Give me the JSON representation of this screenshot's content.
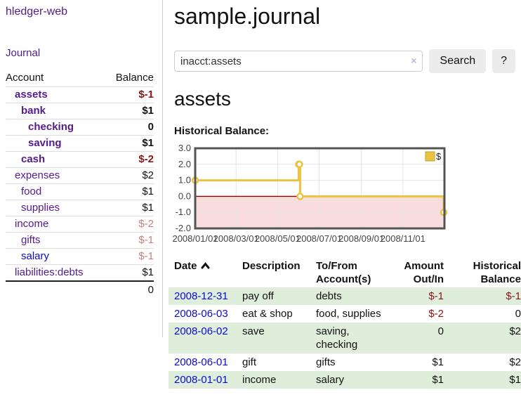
{
  "app": {
    "title": "hledger-web"
  },
  "nav": {
    "journal": "Journal"
  },
  "accounts_panel": {
    "headers": {
      "account": "Account",
      "balance": "Balance"
    },
    "rows": [
      {
        "name": "assets",
        "balance": "$-1"
      },
      {
        "name": "bank",
        "balance": "$1"
      },
      {
        "name": "checking",
        "balance": "0"
      },
      {
        "name": "saving",
        "balance": "$1"
      },
      {
        "name": "cash",
        "balance": "$-2"
      },
      {
        "name": "expenses",
        "balance": "$2"
      },
      {
        "name": "food",
        "balance": "$1"
      },
      {
        "name": "supplies",
        "balance": "$1"
      },
      {
        "name": "income",
        "balance": "$-2"
      },
      {
        "name": "gifts",
        "balance": "$-1"
      },
      {
        "name": "salary",
        "balance": "$-1"
      },
      {
        "name": "liabilities:debts",
        "balance": "$1"
      }
    ],
    "total": "0"
  },
  "main": {
    "title": "sample.journal",
    "search": {
      "value": "inacct:assets",
      "clear": "×",
      "search_button": "Search",
      "help_button": "?"
    },
    "account_title": "assets",
    "section_label": "Historical Balance:"
  },
  "chart_data": {
    "type": "line",
    "step": true,
    "title": "Historical Balance:",
    "series": [
      {
        "name": "$",
        "color": "#e9c342",
        "points": [
          [
            "2008-01-01",
            1
          ],
          [
            "2008-06-01",
            2
          ],
          [
            "2008-06-02",
            2
          ],
          [
            "2008-06-03",
            0
          ],
          [
            "2008-12-31",
            -1
          ]
        ]
      }
    ],
    "x_ticks": [
      "2008/01/01",
      "2008/03/01",
      "2008/05/01",
      "2008/07/01",
      "2008/09/01",
      "2008/11/01"
    ],
    "y_ticks": [
      3,
      2,
      1,
      0,
      -1,
      -2
    ],
    "ylim": [
      -2,
      3
    ],
    "xlim": [
      "2008-01-01",
      "2009-01-01"
    ],
    "grid": true,
    "legend_position": "top-right",
    "colors": {
      "negative_fill": "#f9dcdc",
      "zero_line": "#8b0000",
      "grid": "#e4e4e4",
      "border": "#545454",
      "tick_label": "#444444",
      "legend_swatch_border": "#c49e2c"
    }
  },
  "register": {
    "headers": {
      "date": "Date",
      "description": "Description",
      "accounts": "To/From Account(s)",
      "amount": "Amount Out/In",
      "balance": "Historical Balance"
    },
    "rows": [
      {
        "date": "2008-12-31",
        "description": "pay off",
        "accounts": "debts",
        "amount": "$-1",
        "balance": "$-1"
      },
      {
        "date": "2008-06-03",
        "description": "eat & shop",
        "accounts": "food, supplies",
        "amount": "$-2",
        "balance": "0"
      },
      {
        "date": "2008-06-02",
        "description": "save",
        "accounts": "saving, checking",
        "amount": "0",
        "balance": "$2"
      },
      {
        "date": "2008-06-01",
        "description": "gift",
        "accounts": "gifts",
        "amount": "$1",
        "balance": "$2"
      },
      {
        "date": "2008-01-01",
        "description": "income",
        "accounts": "salary",
        "amount": "$1",
        "balance": "$1"
      }
    ]
  }
}
